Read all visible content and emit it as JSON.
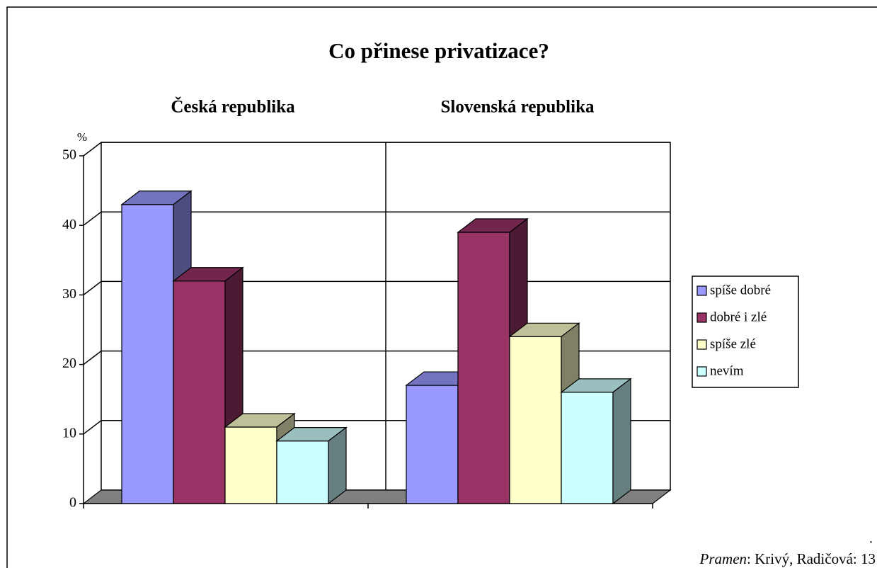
{
  "chart_data": {
    "type": "bar3d",
    "title": "Co přinese privatizace?",
    "y_unit": "%",
    "categories": [
      "Česká republika",
      "Slovenská republika"
    ],
    "series": [
      {
        "name": "spíše dobré",
        "color": "#9999ff",
        "values": [
          43,
          17
        ]
      },
      {
        "name": "dobré i zlé",
        "color": "#993366",
        "values": [
          32,
          39
        ]
      },
      {
        "name": "spíše zlé",
        "color": "#ffffcc",
        "values": [
          11,
          24
        ]
      },
      {
        "name": "nevím",
        "color": "#ccffff",
        "values": [
          9,
          16
        ]
      }
    ],
    "ylim": [
      0,
      50
    ],
    "yticks": [
      0,
      10,
      20,
      30,
      40,
      50
    ],
    "grid": true,
    "legend": "right",
    "mark": ".",
    "source": {
      "label": "Pramen",
      "text": ": Krivý, Radičová: 13"
    }
  }
}
